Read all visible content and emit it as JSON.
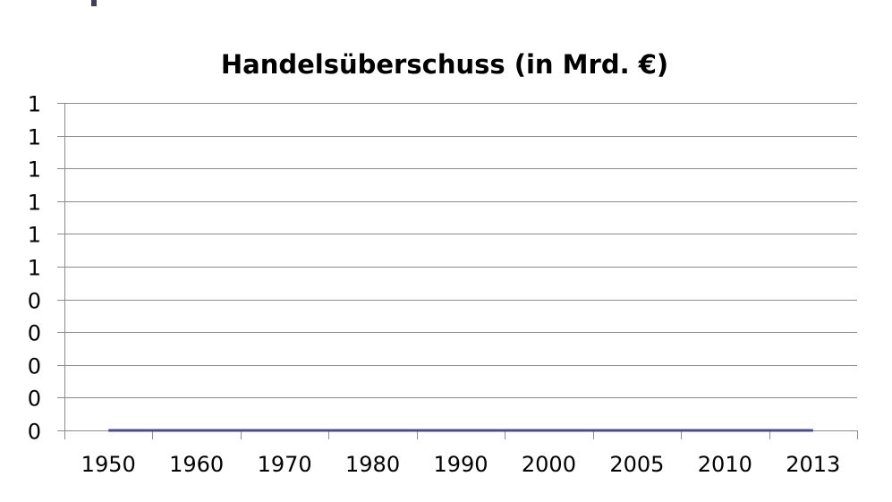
{
  "chart_data": {
    "type": "line",
    "title": "Handelsüberschuss (in Mrd. €)",
    "xlabel": "",
    "ylabel": "",
    "categories": [
      "1950",
      "1960",
      "1970",
      "1980",
      "1990",
      "2000",
      "2005",
      "2010",
      "2013"
    ],
    "series": [
      {
        "values": [
          0,
          0,
          0,
          0,
          0,
          0,
          0,
          0,
          0
        ],
        "color": "#4b4b87"
      }
    ],
    "ylim": [
      0,
      1
    ],
    "y_ticks": [
      0,
      0.1,
      0.2,
      0.3,
      0.4,
      0.5,
      0.6,
      0.7,
      0.8,
      0.9,
      1
    ],
    "y_tick_labels": [
      "0",
      "0",
      "0",
      "0",
      "0",
      "1",
      "1",
      "1",
      "1",
      "1",
      "1"
    ],
    "grid": true,
    "grid_color": "#8c8c8c",
    "legend": "none"
  }
}
